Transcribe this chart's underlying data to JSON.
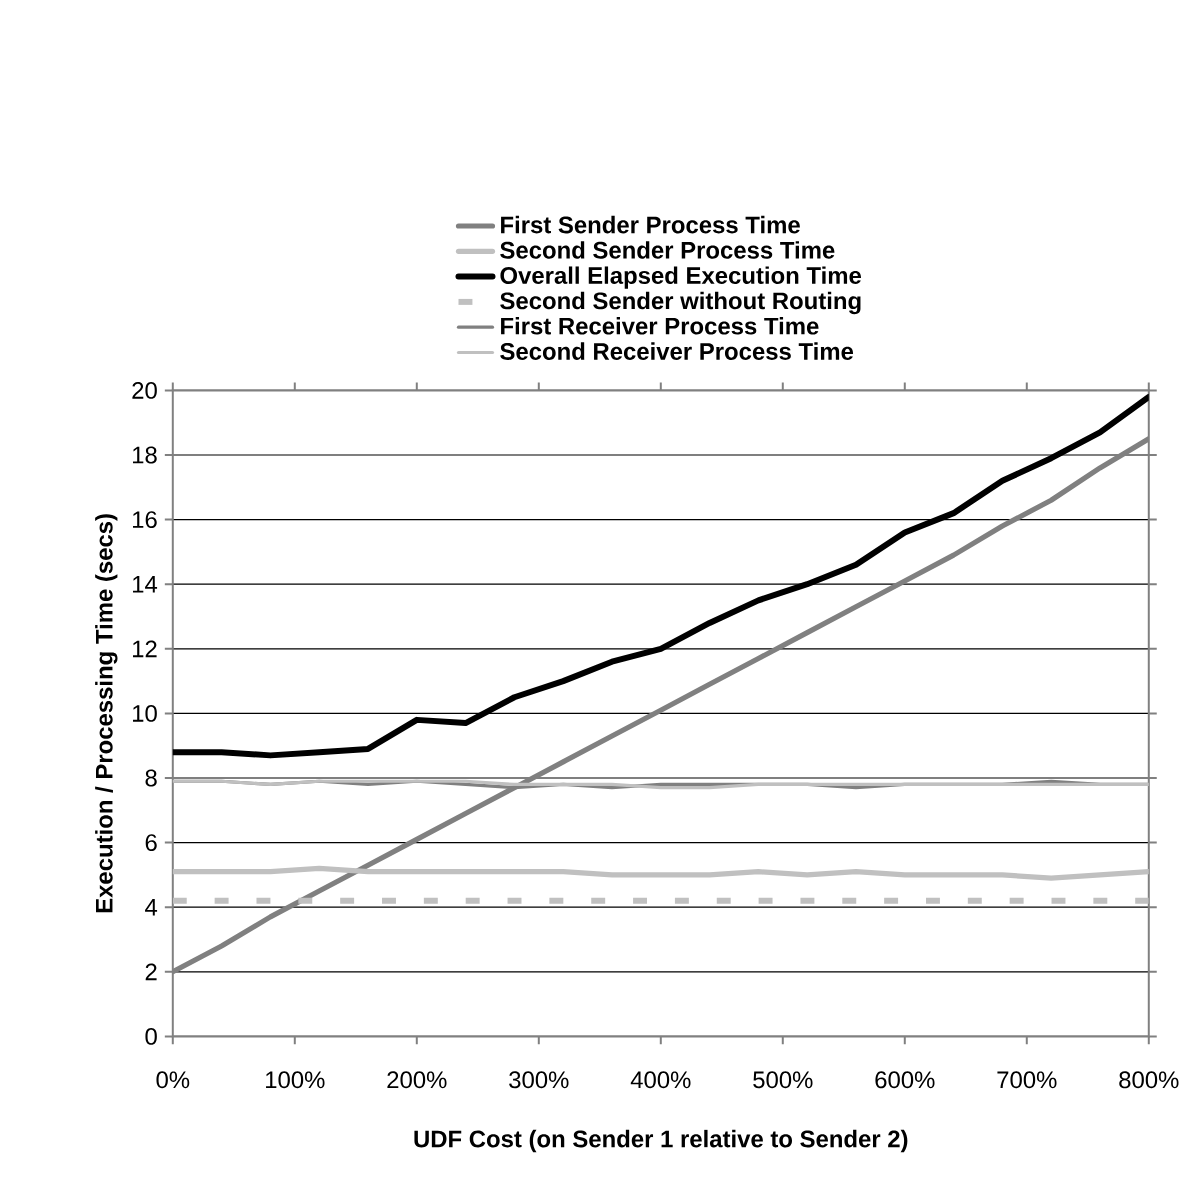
{
  "chart_data": {
    "type": "line",
    "xlabel": "UDF Cost (on Sender 1 relative to Sender 2)",
    "ylabel": "Execution / Processing Time (secs)",
    "x": [
      0,
      40,
      80,
      120,
      160,
      200,
      240,
      280,
      320,
      360,
      400,
      440,
      480,
      520,
      560,
      600,
      640,
      680,
      720,
      760,
      800
    ],
    "xlim": [
      0,
      800
    ],
    "xticks": [
      {
        "value": 0,
        "label": "0%"
      },
      {
        "value": 100,
        "label": "100%"
      },
      {
        "value": 200,
        "label": "200%"
      },
      {
        "value": 300,
        "label": "300%"
      },
      {
        "value": 400,
        "label": "400%"
      },
      {
        "value": 500,
        "label": "500%"
      },
      {
        "value": 600,
        "label": "600%"
      },
      {
        "value": 700,
        "label": "700%"
      },
      {
        "value": 800,
        "label": "800%"
      }
    ],
    "ylim": [
      0,
      20
    ],
    "yticks": [
      0,
      2,
      4,
      6,
      8,
      10,
      12,
      14,
      16,
      18,
      20
    ],
    "grid": "y",
    "legend": "top",
    "series": [
      {
        "name": "First Sender Process Time",
        "color": "#808080",
        "values": [
          2.0,
          2.8,
          3.7,
          4.5,
          5.3,
          6.1,
          6.9,
          7.7,
          8.5,
          9.3,
          10.1,
          10.9,
          11.7,
          12.5,
          13.3,
          14.1,
          14.9,
          15.8,
          16.6,
          17.6,
          18.5
        ]
      },
      {
        "name": "Second Sender Process Time",
        "color": "#c0c0c0",
        "values": [
          5.1,
          5.1,
          5.1,
          5.2,
          5.1,
          5.1,
          5.1,
          5.1,
          5.1,
          5.0,
          5.0,
          5.0,
          5.1,
          5.0,
          5.1,
          5.0,
          5.0,
          5.0,
          4.9,
          5.0,
          5.1
        ]
      },
      {
        "name": "Overall Elapsed Execution Time",
        "color": "#000000",
        "values": [
          8.8,
          8.8,
          8.7,
          8.8,
          8.9,
          9.8,
          9.7,
          10.5,
          11.0,
          11.6,
          12.0,
          12.8,
          13.5,
          14.0,
          14.6,
          15.6,
          16.2,
          17.2,
          17.9,
          18.7,
          19.8
        ]
      },
      {
        "name": "Second Sender without Routing",
        "color": "#c0c0c0",
        "line_style": "dashed",
        "values": [
          4.2,
          4.2,
          4.2,
          4.2,
          4.2,
          4.2,
          4.2,
          4.2,
          4.2,
          4.2,
          4.2,
          4.2,
          4.2,
          4.2,
          4.2,
          4.2,
          4.2,
          4.2,
          4.2,
          4.2,
          4.2
        ]
      },
      {
        "name": "First Receiver Process Time",
        "color": "#808080",
        "values": [
          7.9,
          7.9,
          7.8,
          7.9,
          7.8,
          7.9,
          7.8,
          7.7,
          7.8,
          7.7,
          7.8,
          7.8,
          7.8,
          7.8,
          7.7,
          7.8,
          7.8,
          7.8,
          7.9,
          7.8,
          7.8
        ]
      },
      {
        "name": "Second Receiver Process Time",
        "color": "#c0c0c0",
        "values": [
          7.9,
          7.9,
          7.8,
          7.9,
          7.9,
          7.9,
          7.9,
          7.8,
          7.8,
          7.8,
          7.7,
          7.7,
          7.8,
          7.8,
          7.8,
          7.8,
          7.8,
          7.8,
          7.8,
          7.8,
          7.8
        ]
      }
    ]
  }
}
